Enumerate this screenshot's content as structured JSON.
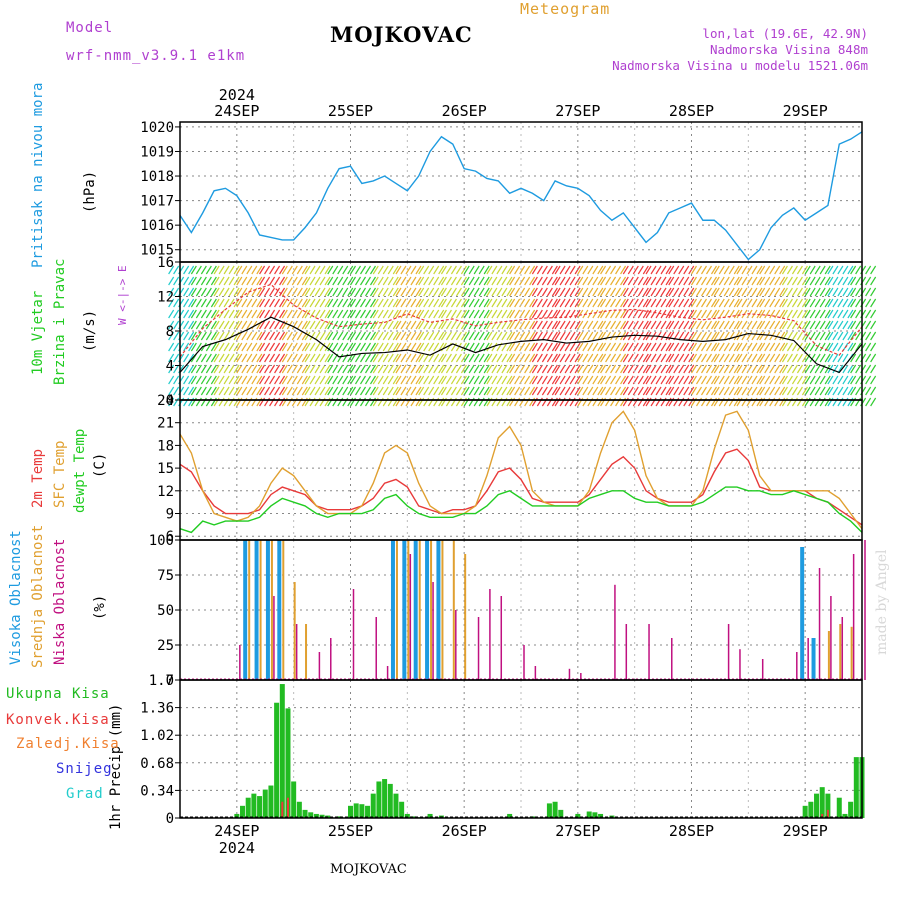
{
  "header": {
    "model_label": "Model",
    "model_name": "wrf-nmm_v3.9.1 e1km",
    "title": "MOJKOVAC",
    "subtitle": "Meteogram",
    "coords": "lon,lat (19.6E, 42.9N)",
    "elevation": "Nadmorska Visina 848m",
    "model_elevation": "Nadmorska Visina u modelu 1521.06m"
  },
  "footer": {
    "station": "MOJKOVAC",
    "credit": "made by Angel"
  },
  "axis_dates": [
    "24SEP",
    "25SEP",
    "26SEP",
    "27SEP",
    "28SEP",
    "29SEP"
  ],
  "axis_year": "2024",
  "panels": {
    "pressure": {
      "ylabel": "Pritisak na nivou mora",
      "unit": "(hPa)"
    },
    "wind": {
      "ylabel1": "10m Vjetar",
      "ylabel2": "Brzina i Pravac",
      "unit": "(m/s)",
      "compass": "W <-|-> E"
    },
    "temp": {
      "ylabel_2m": "2m Temp",
      "ylabel_sfc": "SFC Temp",
      "ylabel_dew": "dewpt Temp",
      "unit": "(C)"
    },
    "cloud": {
      "ylabel_high": "Visoka Oblacnost",
      "ylabel_mid": "Srednja Oblacnost",
      "ylabel_low": "Niska Oblacnost",
      "unit": "(%)"
    },
    "precip": {
      "ylabel": "1hr Precip (mm)",
      "legend": [
        "Ukupna Kisa",
        "Konvek.Kisa",
        "Zaledj.Kisa",
        "Snijeg",
        "Grad"
      ]
    }
  },
  "colors": {
    "pressure": "#1e9be0",
    "temp2m": "#e83a3a",
    "sfc": "#e0a030",
    "dew": "#22cc22",
    "cloud_high": "#1e9be0",
    "cloud_mid": "#e0a030",
    "cloud_low": "#c01080",
    "rain": "#22bb22",
    "conv": "#e83a3a",
    "frz": "#f08030",
    "snow": "#3333dd",
    "hail": "#22cccc",
    "wind_mean": "#000000",
    "wind_gust": "#e83a3a"
  },
  "chart_data": [
    {
      "type": "line",
      "name": "pressure",
      "x_unit": "day",
      "xlim": [
        23.5,
        29.5
      ],
      "ylim": [
        1014.5,
        1020.2
      ],
      "yticks": [
        1015,
        1016,
        1017,
        1018,
        1019,
        1020
      ],
      "x": [
        23.5,
        23.6,
        23.7,
        23.8,
        23.9,
        24.0,
        24.1,
        24.2,
        24.3,
        24.4,
        24.5,
        24.6,
        24.7,
        24.8,
        24.9,
        25.0,
        25.1,
        25.2,
        25.3,
        25.4,
        25.5,
        25.6,
        25.7,
        25.8,
        25.9,
        26.0,
        26.1,
        26.2,
        26.3,
        26.4,
        26.5,
        26.6,
        26.7,
        26.8,
        26.9,
        27.0,
        27.1,
        27.2,
        27.3,
        27.4,
        27.5,
        27.6,
        27.7,
        27.8,
        27.9,
        28.0,
        28.1,
        28.2,
        28.3,
        28.4,
        28.5,
        28.6,
        28.7,
        28.8,
        28.9,
        29.0,
        29.1,
        29.2,
        29.3,
        29.4,
        29.5
      ],
      "values": [
        1016.4,
        1015.7,
        1016.5,
        1017.4,
        1017.5,
        1017.2,
        1016.5,
        1015.6,
        1015.5,
        1015.4,
        1015.4,
        1015.9,
        1016.5,
        1017.5,
        1018.3,
        1018.4,
        1017.7,
        1017.8,
        1018.0,
        1017.7,
        1017.4,
        1018.0,
        1019.0,
        1019.6,
        1019.3,
        1018.3,
        1018.2,
        1017.9,
        1017.8,
        1017.3,
        1017.5,
        1017.3,
        1017.0,
        1017.8,
        1017.6,
        1017.5,
        1017.2,
        1016.6,
        1016.2,
        1016.5,
        1015.9,
        1015.3,
        1015.7,
        1016.5,
        1016.7,
        1016.9,
        1016.2,
        1016.2,
        1015.8,
        1015.2,
        1014.6,
        1015.0,
        1015.9,
        1016.4,
        1016.7,
        1016.2,
        1016.5,
        1016.8,
        1019.3,
        1019.5,
        1019.8
      ]
    },
    {
      "type": "line",
      "name": "wind",
      "x_unit": "day",
      "xlim": [
        23.5,
        29.5
      ],
      "ylim": [
        0,
        16
      ],
      "yticks": [
        0,
        4,
        8,
        12,
        16
      ],
      "x": [
        23.5,
        23.7,
        23.9,
        24.1,
        24.3,
        24.5,
        24.7,
        24.9,
        25.1,
        25.3,
        25.5,
        25.7,
        25.9,
        26.1,
        26.3,
        26.5,
        26.7,
        26.9,
        27.1,
        27.3,
        27.5,
        27.7,
        27.9,
        28.1,
        28.3,
        28.5,
        28.7,
        28.9,
        29.1,
        29.3,
        29.5
      ],
      "series": [
        {
          "name": "mean",
          "values": [
            3.2,
            6.2,
            7.0,
            8.2,
            9.6,
            8.5,
            7.0,
            5.0,
            5.4,
            5.5,
            5.8,
            5.2,
            6.5,
            5.5,
            6.4,
            6.8,
            7.0,
            6.6,
            6.8,
            7.3,
            7.5,
            7.4,
            7.0,
            6.8,
            7.0,
            7.7,
            7.5,
            6.9,
            4.2,
            3.2,
            6.5
          ]
        },
        {
          "name": "gust",
          "values": [
            5.0,
            8.3,
            10.5,
            12.5,
            13.4,
            11.0,
            9.5,
            8.5,
            8.8,
            9.0,
            10.0,
            9.0,
            9.4,
            8.6,
            9.0,
            9.3,
            9.5,
            9.6,
            10.0,
            10.4,
            10.5,
            10.1,
            9.6,
            9.3,
            9.6,
            10.0,
            9.8,
            9.2,
            6.3,
            5.2,
            8.5
          ]
        }
      ],
      "speed": [
        5,
        7,
        9,
        11,
        14,
        12,
        10,
        8,
        8,
        9,
        12,
        10,
        10,
        8,
        9,
        11,
        13,
        14,
        12,
        12,
        13,
        14,
        13,
        12,
        11,
        12,
        11,
        10,
        6,
        4,
        8
      ]
    },
    {
      "type": "line",
      "name": "temperature",
      "x_unit": "day",
      "xlim": [
        23.5,
        29.5
      ],
      "ylim": [
        5.5,
        24
      ],
      "yticks": [
        6,
        9,
        12,
        15,
        18,
        21,
        24
      ],
      "x": [
        23.5,
        23.6,
        23.7,
        23.8,
        23.9,
        24.0,
        24.1,
        24.2,
        24.3,
        24.4,
        24.5,
        24.6,
        24.7,
        24.8,
        24.9,
        25.0,
        25.1,
        25.2,
        25.3,
        25.4,
        25.5,
        25.6,
        25.7,
        25.8,
        25.9,
        26.0,
        26.1,
        26.2,
        26.3,
        26.4,
        26.5,
        26.6,
        26.7,
        26.8,
        26.9,
        27.0,
        27.1,
        27.2,
        27.3,
        27.4,
        27.5,
        27.6,
        27.7,
        27.8,
        27.9,
        28.0,
        28.1,
        28.2,
        28.3,
        28.4,
        28.5,
        28.6,
        28.7,
        28.8,
        28.9,
        29.0,
        29.1,
        29.2,
        29.3,
        29.4,
        29.5
      ],
      "series": [
        {
          "name": "2m",
          "values": [
            15.5,
            14.5,
            12.0,
            10.0,
            9.0,
            9.0,
            9.0,
            9.5,
            11.5,
            12.5,
            12.0,
            11.5,
            10.0,
            9.5,
            9.5,
            9.5,
            10.0,
            11.0,
            13.0,
            13.5,
            12.5,
            10.0,
            9.5,
            9.0,
            9.5,
            9.5,
            10.0,
            12.0,
            14.5,
            15.0,
            13.5,
            11.0,
            10.5,
            10.5,
            10.5,
            10.5,
            11.5,
            13.5,
            15.5,
            16.5,
            15.0,
            12.0,
            11.0,
            10.5,
            10.5,
            10.5,
            11.5,
            14.5,
            17.0,
            17.5,
            16.0,
            12.5,
            12.0,
            12.0,
            12.0,
            12.0,
            11.0,
            10.5,
            9.5,
            8.5,
            7.5
          ]
        },
        {
          "name": "sfc",
          "values": [
            19.5,
            17.0,
            12.0,
            9.0,
            8.5,
            8.0,
            8.5,
            10.0,
            13.0,
            15.0,
            14.0,
            12.0,
            10.0,
            9.0,
            9.0,
            9.0,
            10.0,
            13.0,
            17.0,
            18.0,
            17.0,
            13.0,
            10.0,
            9.0,
            9.0,
            9.0,
            10.0,
            14.0,
            19.0,
            20.5,
            18.0,
            12.0,
            10.5,
            10.0,
            10.0,
            10.0,
            12.0,
            17.0,
            21.0,
            22.5,
            20.0,
            14.0,
            11.0,
            10.0,
            10.0,
            10.0,
            12.0,
            17.5,
            22.0,
            22.5,
            20.0,
            14.0,
            12.0,
            12.0,
            12.0,
            12.0,
            12.0,
            12.0,
            11.0,
            9.0,
            7.0
          ]
        },
        {
          "name": "dewpt",
          "values": [
            7.0,
            6.5,
            8.0,
            7.5,
            8.0,
            8.0,
            8.0,
            8.5,
            10.0,
            11.0,
            10.5,
            10.0,
            9.0,
            8.5,
            9.0,
            9.0,
            9.0,
            9.5,
            11.0,
            11.5,
            10.0,
            9.0,
            8.5,
            8.5,
            8.5,
            9.0,
            9.0,
            10.0,
            11.5,
            12.0,
            11.0,
            10.0,
            10.0,
            10.0,
            10.0,
            10.0,
            11.0,
            11.5,
            12.0,
            12.0,
            11.0,
            10.5,
            10.5,
            10.0,
            10.0,
            10.0,
            10.5,
            11.5,
            12.5,
            12.5,
            12.0,
            12.0,
            11.5,
            11.5,
            12.0,
            11.5,
            11.0,
            10.5,
            9.0,
            8.0,
            6.5
          ]
        }
      ]
    },
    {
      "type": "bar",
      "name": "cloud",
      "x_unit": "day",
      "xlim": [
        23.5,
        29.5
      ],
      "ylim": [
        0,
        100
      ],
      "yticks": [
        0,
        25,
        50,
        75,
        100
      ],
      "series": [
        {
          "name": "high",
          "x": [
            24.1,
            24.2,
            24.3,
            24.4,
            25.4,
            25.5,
            25.6,
            25.7,
            25.8,
            29.0,
            29.1
          ],
          "values": [
            100,
            100,
            100,
            100,
            100,
            100,
            100,
            100,
            100,
            95,
            30
          ]
        },
        {
          "name": "mid",
          "x": [
            24.1,
            24.2,
            24.3,
            24.4,
            24.5,
            24.6,
            25.4,
            25.5,
            25.6,
            25.7,
            25.8,
            25.9,
            26.0,
            29.2,
            29.3,
            29.4
          ],
          "values": [
            100,
            100,
            100,
            100,
            70,
            40,
            100,
            100,
            100,
            100,
            100,
            100,
            90,
            35,
            40,
            38
          ]
        },
        {
          "name": "low",
          "x": [
            24.0,
            24.3,
            24.5,
            24.7,
            24.8,
            25.0,
            25.2,
            25.3,
            25.5,
            25.7,
            25.9,
            26.1,
            26.2,
            26.3,
            26.5,
            26.6,
            26.9,
            27.0,
            27.3,
            27.4,
            27.6,
            27.8,
            28.3,
            28.4,
            28.6,
            28.9,
            29.0,
            29.1,
            29.2,
            29.3,
            29.4,
            29.5
          ],
          "values": [
            25,
            60,
            40,
            20,
            30,
            65,
            45,
            10,
            90,
            70,
            50,
            45,
            65,
            60,
            25,
            10,
            8,
            5,
            68,
            40,
            40,
            30,
            40,
            22,
            15,
            20,
            30,
            80,
            60,
            45,
            90,
            100
          ]
        }
      ]
    },
    {
      "type": "bar",
      "name": "precip",
      "x_unit": "day",
      "xlim": [
        23.5,
        29.5
      ],
      "ylim": [
        0,
        1.7
      ],
      "yticks": [
        0,
        0.34,
        0.68,
        1.02,
        1.36,
        1.7
      ],
      "series": [
        {
          "name": "total",
          "x": [
            24.0,
            24.05,
            24.1,
            24.15,
            24.2,
            24.25,
            24.3,
            24.35,
            24.4,
            24.45,
            24.5,
            24.55,
            24.6,
            24.65,
            24.7,
            24.75,
            24.8,
            24.9,
            25.0,
            25.05,
            25.1,
            25.15,
            25.2,
            25.25,
            25.3,
            25.35,
            25.4,
            25.45,
            25.5,
            25.55,
            25.6,
            25.7,
            25.8,
            26.4,
            26.6,
            26.75,
            26.8,
            26.85,
            27.0,
            27.1,
            27.15,
            27.2,
            27.3,
            29.0,
            29.05,
            29.1,
            29.15,
            29.2,
            29.3,
            29.35,
            29.4,
            29.45,
            29.5
          ],
          "values": [
            0.05,
            0.15,
            0.25,
            0.3,
            0.27,
            0.35,
            0.4,
            1.42,
            1.65,
            1.35,
            0.45,
            0.2,
            0.1,
            0.07,
            0.05,
            0.04,
            0.03,
            0.02,
            0.15,
            0.18,
            0.17,
            0.15,
            0.3,
            0.45,
            0.48,
            0.42,
            0.3,
            0.2,
            0.05,
            0.02,
            0.01,
            0.05,
            0.03,
            0.05,
            0.02,
            0.18,
            0.2,
            0.1,
            0.05,
            0.08,
            0.07,
            0.05,
            0.03,
            0.15,
            0.2,
            0.3,
            0.38,
            0.3,
            0.25,
            0.05,
            0.2,
            0.75,
            0.75
          ]
        },
        {
          "name": "convective",
          "x": [
            24.4,
            24.45,
            29.15,
            29.2
          ],
          "values": [
            0.2,
            0.25,
            0.05,
            0.1
          ]
        }
      ]
    }
  ]
}
